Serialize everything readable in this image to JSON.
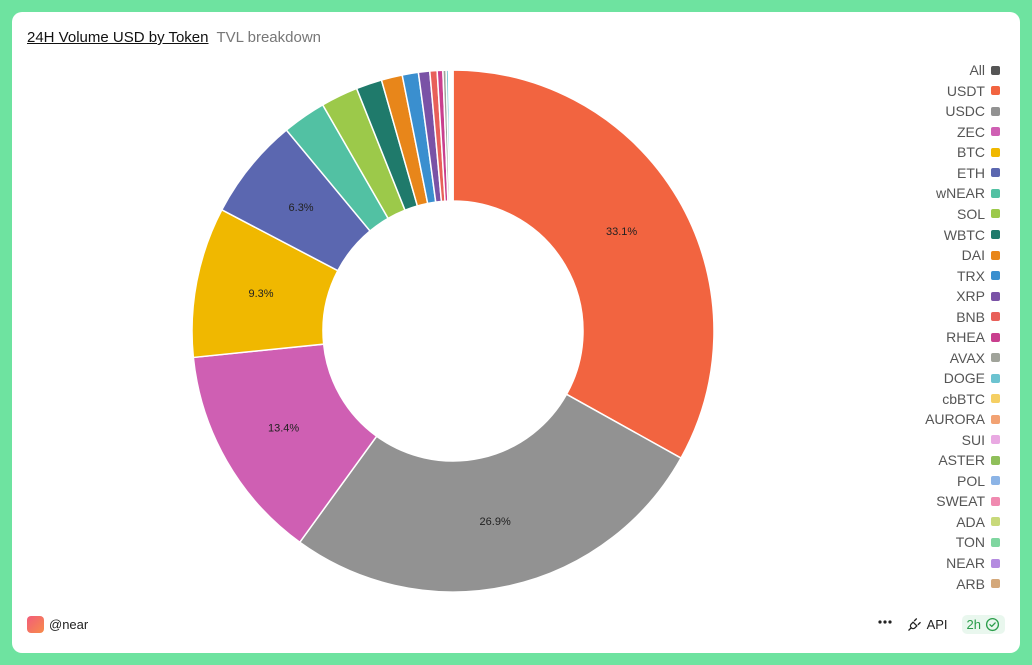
{
  "header": {
    "title": "24H Volume USD by Token",
    "subtitle": "TVL breakdown"
  },
  "chart_data": {
    "type": "pie",
    "variant": "donut",
    "title": "24H Volume USD by Token",
    "legend_position": "right",
    "legend_extra_entries": [
      {
        "label": "All",
        "color": "#555555"
      }
    ],
    "slices": [
      {
        "label": "USDT",
        "value": 33.1,
        "color": "#f26440",
        "data_label": "33.1%"
      },
      {
        "label": "USDC",
        "value": 26.9,
        "color": "#929292",
        "data_label": "26.9%"
      },
      {
        "label": "ZEC",
        "value": 13.4,
        "color": "#cf5fb3",
        "data_label": "13.4%"
      },
      {
        "label": "BTC",
        "value": 9.3,
        "color": "#f0b800",
        "data_label": "9.3%"
      },
      {
        "label": "ETH",
        "value": 6.3,
        "color": "#5b67b0",
        "data_label": "6.3%"
      },
      {
        "label": "wNEAR",
        "value": 2.7,
        "color": "#52c1a3"
      },
      {
        "label": "SOL",
        "value": 2.3,
        "color": "#9cc94a"
      },
      {
        "label": "WBTC",
        "value": 1.6,
        "color": "#1f7a6b"
      },
      {
        "label": "DAI",
        "value": 1.3,
        "color": "#e8861a"
      },
      {
        "label": "TRX",
        "value": 1.0,
        "color": "#3a8fcf"
      },
      {
        "label": "XRP",
        "value": 0.7,
        "color": "#7a52a6"
      },
      {
        "label": "BNB",
        "value": 0.45,
        "color": "#e8605a"
      },
      {
        "label": "RHEA",
        "value": 0.35,
        "color": "#c93f8e"
      },
      {
        "label": "AVAX",
        "value": 0.2,
        "color": "#a0a39a"
      },
      {
        "label": "DOGE",
        "value": 0.15,
        "color": "#6cc3d0"
      },
      {
        "label": "cbBTC",
        "value": 0.08,
        "color": "#f5cf63"
      },
      {
        "label": "AURORA",
        "value": 0.05,
        "color": "#f2a273"
      },
      {
        "label": "SUI",
        "value": 0.04,
        "color": "#e9a9e2"
      },
      {
        "label": "ASTER",
        "value": 0.03,
        "color": "#8fbf5a"
      },
      {
        "label": "POL",
        "value": 0.02,
        "color": "#8cb4e6"
      },
      {
        "label": "SWEAT",
        "value": 0.01,
        "color": "#f08ab0"
      },
      {
        "label": "ADA",
        "value": 0.01,
        "color": "#c8d97a"
      },
      {
        "label": "TON",
        "value": 0.01,
        "color": "#7fd6a0"
      },
      {
        "label": "NEAR",
        "value": 0.01,
        "color": "#b48be0"
      },
      {
        "label": "ARB",
        "value": 0.01,
        "color": "#d4a87a"
      }
    ]
  },
  "footer": {
    "author": "@near",
    "more_icon": "more-horizontal-icon",
    "api_label": "API",
    "api_icon": "plug-icon",
    "refresh_label": "2h",
    "refresh_icon": "check-circle-icon"
  }
}
